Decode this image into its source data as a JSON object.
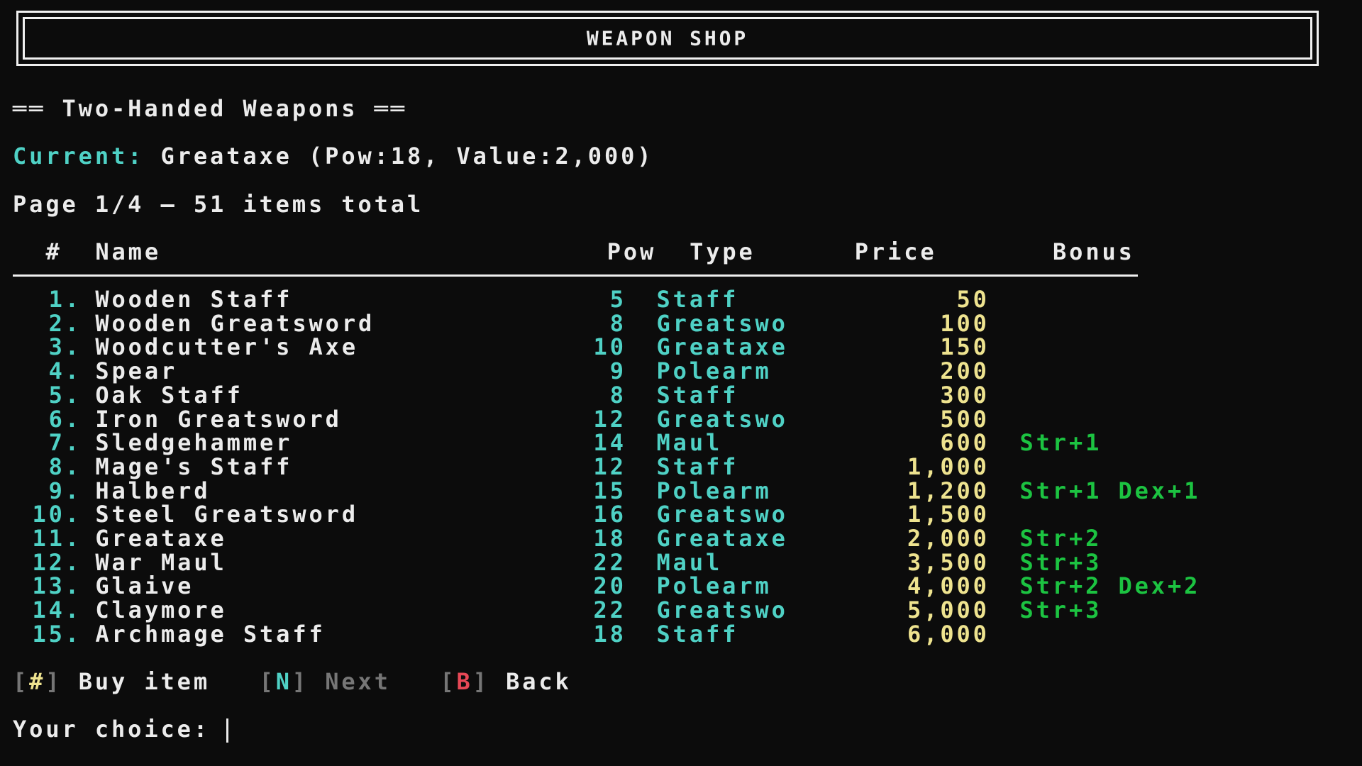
{
  "header": {
    "title": "WEAPON SHOP"
  },
  "section": {
    "title": "══ Two-Handed Weapons ══"
  },
  "current": {
    "label": "Current:",
    "value": "Greataxe (Pow:18, Value:2,000)"
  },
  "pagination": {
    "text": "Page 1/4 — 51 items total",
    "page": 1,
    "pages": 4,
    "total": 51
  },
  "table": {
    "columns": {
      "num": "#",
      "name": "Name",
      "pow": "Pow",
      "type": "Type",
      "price": "Price",
      "bonus": "Bonus"
    },
    "rows": [
      {
        "num": "1.",
        "name": "Wooden Staff",
        "pow": "5",
        "type": "Staff",
        "price": "50",
        "bonus": ""
      },
      {
        "num": "2.",
        "name": "Wooden Greatsword",
        "pow": "8",
        "type": "Greatswo",
        "price": "100",
        "bonus": ""
      },
      {
        "num": "3.",
        "name": "Woodcutter's Axe",
        "pow": "10",
        "type": "Greataxe",
        "price": "150",
        "bonus": ""
      },
      {
        "num": "4.",
        "name": "Spear",
        "pow": "9",
        "type": "Polearm",
        "price": "200",
        "bonus": ""
      },
      {
        "num": "5.",
        "name": "Oak Staff",
        "pow": "8",
        "type": "Staff",
        "price": "300",
        "bonus": ""
      },
      {
        "num": "6.",
        "name": "Iron Greatsword",
        "pow": "12",
        "type": "Greatswo",
        "price": "500",
        "bonus": ""
      },
      {
        "num": "7.",
        "name": "Sledgehammer",
        "pow": "14",
        "type": "Maul",
        "price": "600",
        "bonus": "Str+1"
      },
      {
        "num": "8.",
        "name": "Mage's Staff",
        "pow": "12",
        "type": "Staff",
        "price": "1,000",
        "bonus": ""
      },
      {
        "num": "9.",
        "name": "Halberd",
        "pow": "15",
        "type": "Polearm",
        "price": "1,200",
        "bonus": "Str+1 Dex+1"
      },
      {
        "num": "10.",
        "name": "Steel Greatsword",
        "pow": "16",
        "type": "Greatswo",
        "price": "1,500",
        "bonus": ""
      },
      {
        "num": "11.",
        "name": "Greataxe",
        "pow": "18",
        "type": "Greataxe",
        "price": "2,000",
        "bonus": "Str+2"
      },
      {
        "num": "12.",
        "name": "War Maul",
        "pow": "22",
        "type": "Maul",
        "price": "3,500",
        "bonus": "Str+3"
      },
      {
        "num": "13.",
        "name": "Glaive",
        "pow": "20",
        "type": "Polearm",
        "price": "4,000",
        "bonus": "Str+2 Dex+2"
      },
      {
        "num": "14.",
        "name": "Claymore",
        "pow": "22",
        "type": "Greatswo",
        "price": "5,000",
        "bonus": "Str+3"
      },
      {
        "num": "15.",
        "name": "Archmage Staff",
        "pow": "18",
        "type": "Staff",
        "price": "6,000",
        "bonus": ""
      }
    ]
  },
  "actions": [
    {
      "open": "[",
      "key": "#",
      "close": "]",
      "label": "Buy item",
      "key_color": "#eee38f",
      "enabled": true
    },
    {
      "open": "[",
      "key": "N",
      "close": "]",
      "label": "Next",
      "key_color": "#4fd1c5",
      "enabled": false
    },
    {
      "open": "[",
      "key": "B",
      "close": "]",
      "label": "Back",
      "key_color": "#e74856",
      "enabled": true
    }
  ],
  "prompt": {
    "label": "Your choice: ",
    "value": ""
  },
  "colors": {
    "background": "#0c0c0c",
    "text": "#ececec",
    "accent": "#4fd1c5",
    "price": "#eee38f",
    "bonus": "#1cc341",
    "danger": "#e74856",
    "muted": "#767676"
  }
}
